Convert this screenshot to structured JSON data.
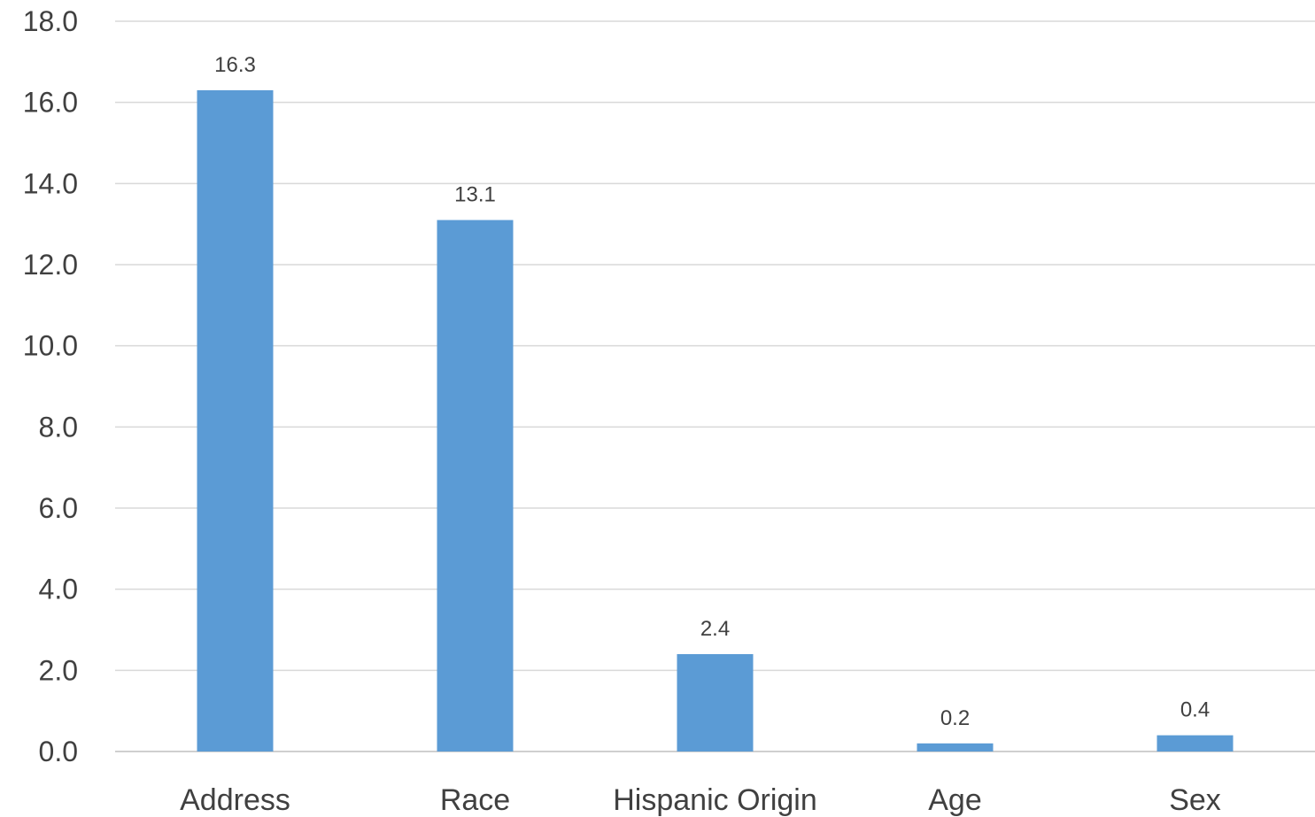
{
  "chart_data": {
    "type": "bar",
    "title": "",
    "xlabel": "",
    "ylabel": "",
    "categories": [
      "Address",
      "Race",
      "Hispanic Origin",
      "Age",
      "Sex"
    ],
    "values": [
      16.3,
      13.1,
      2.4,
      0.2,
      0.4
    ],
    "data_labels": [
      "16.3",
      "13.1",
      "2.4",
      "0.2",
      "0.4"
    ],
    "ylim": [
      0,
      18
    ],
    "y_ticks": [
      "0.0",
      "2.0",
      "4.0",
      "6.0",
      "8.0",
      "10.0",
      "12.0",
      "14.0",
      "16.0",
      "18.0"
    ],
    "grid": true,
    "legend": "none",
    "bar_color": "#5b9bd5"
  }
}
